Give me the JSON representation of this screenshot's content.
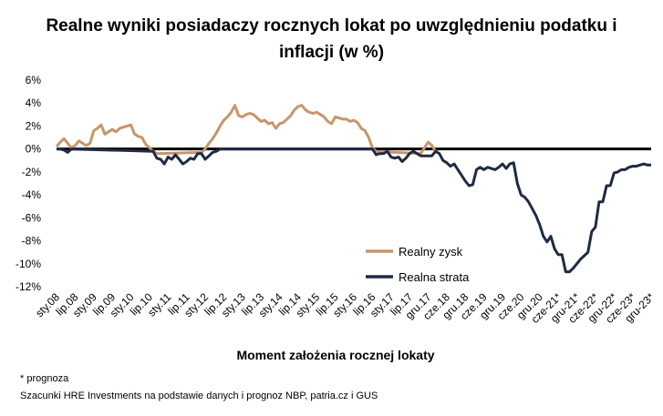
{
  "chart_data": {
    "type": "line",
    "title_lines": [
      "Realne wyniki posiadaczy rocznych lokat po uwzględnieniu podatku i",
      "inflacji (w %)"
    ],
    "xlabel": "Moment założenia rocznej lokaty",
    "ylabel": "",
    "ylim": [
      -12,
      6
    ],
    "y_ticks": [
      6,
      4,
      2,
      0,
      -2,
      -4,
      -6,
      -8,
      -10,
      -12
    ],
    "y_tick_labels": [
      "6%",
      "4%",
      "2%",
      "0%",
      "-2%",
      "-4%",
      "-6%",
      "-8%",
      "-10%",
      "-12%"
    ],
    "x_tick_labels": [
      "sty.08",
      "lip.08",
      "sty.09",
      "lip.09",
      "sty.10",
      "lip.10",
      "sty.11",
      "lip.11",
      "sty.12",
      "lip.12",
      "sty.13",
      "lip.13",
      "sty.14",
      "lip.14",
      "sty.15",
      "lip.15",
      "sty.16",
      "lip.16",
      "sty.17",
      "lip.17",
      "gru.17",
      "cze.18",
      "gru.18",
      "cze.19",
      "gru.19",
      "cze.20",
      "gru.20",
      "cze-21*",
      "gru-21*",
      "cze-22*",
      "gru-22*",
      "cze-23*",
      "gru-23*"
    ],
    "legend_position": "inside-lower-center",
    "colors": {
      "profit": "#c8956a",
      "loss": "#1f2a44",
      "zero_line": "#000000"
    },
    "series": [
      {
        "name": "Realny zysk",
        "color": "#c8956a",
        "points": [
          [
            0,
            0.2
          ],
          [
            0.2,
            0.6
          ],
          [
            0.4,
            0.9
          ],
          [
            0.6,
            0.5
          ],
          [
            0.8,
            0.1
          ],
          [
            1.0,
            0.3
          ],
          [
            1.2,
            0.7
          ],
          [
            1.4,
            0.5
          ],
          [
            1.6,
            0.3
          ],
          [
            1.8,
            0.5
          ],
          [
            2.0,
            1.6
          ],
          [
            2.2,
            1.8
          ],
          [
            2.4,
            2.1
          ],
          [
            2.6,
            1.3
          ],
          [
            2.8,
            1.5
          ],
          [
            3.0,
            1.7
          ],
          [
            3.2,
            1.5
          ],
          [
            3.4,
            1.8
          ],
          [
            3.6,
            1.9
          ],
          [
            3.8,
            2.0
          ],
          [
            4.0,
            2.1
          ],
          [
            4.2,
            1.3
          ],
          [
            4.4,
            1.1
          ],
          [
            4.6,
            1.0
          ],
          [
            4.8,
            0.4
          ],
          [
            5.0,
            0.1
          ],
          [
            5.2,
            -0.2
          ],
          [
            5.4,
            -0.4
          ],
          [
            7.8,
            -0.3
          ],
          [
            8.0,
            0.0
          ],
          [
            8.2,
            0.5
          ],
          [
            8.4,
            0.9
          ],
          [
            8.6,
            1.4
          ],
          [
            8.8,
            2.0
          ],
          [
            9.0,
            2.5
          ],
          [
            9.2,
            2.8
          ],
          [
            9.4,
            3.2
          ],
          [
            9.6,
            3.8
          ],
          [
            9.8,
            2.9
          ],
          [
            10.0,
            2.8
          ],
          [
            10.2,
            3.0
          ],
          [
            10.4,
            3.1
          ],
          [
            10.6,
            3.0
          ],
          [
            10.8,
            2.7
          ],
          [
            11.0,
            2.4
          ],
          [
            11.2,
            2.5
          ],
          [
            11.4,
            2.2
          ],
          [
            11.6,
            2.3
          ],
          [
            11.8,
            1.8
          ],
          [
            12.0,
            2.2
          ],
          [
            12.2,
            2.3
          ],
          [
            12.4,
            2.6
          ],
          [
            12.6,
            2.9
          ],
          [
            12.8,
            3.4
          ],
          [
            13.0,
            3.7
          ],
          [
            13.2,
            3.8
          ],
          [
            13.4,
            3.4
          ],
          [
            13.6,
            3.2
          ],
          [
            13.8,
            3.1
          ],
          [
            14.0,
            3.2
          ],
          [
            14.2,
            3.0
          ],
          [
            14.4,
            2.8
          ],
          [
            14.6,
            2.4
          ],
          [
            14.8,
            2.2
          ],
          [
            15.0,
            2.8
          ],
          [
            15.2,
            2.7
          ],
          [
            15.4,
            2.6
          ],
          [
            15.6,
            2.6
          ],
          [
            15.8,
            2.4
          ],
          [
            16.0,
            2.5
          ],
          [
            16.2,
            2.3
          ],
          [
            16.4,
            1.8
          ],
          [
            16.6,
            1.6
          ],
          [
            16.8,
            1.0
          ],
          [
            17.0,
            0.1
          ],
          [
            17.2,
            -0.2
          ],
          [
            19.6,
            -0.4
          ],
          [
            19.8,
            0.1
          ],
          [
            20.0,
            0.6
          ],
          [
            20.2,
            0.3
          ],
          [
            20.4,
            -0.2
          ]
        ]
      },
      {
        "name": "Realna strata",
        "color": "#1f2a44",
        "points": [
          [
            0,
            0.0
          ],
          [
            0.2,
            0.0
          ],
          [
            0.4,
            -0.1
          ],
          [
            0.6,
            -0.3
          ],
          [
            0.8,
            0.0
          ],
          [
            5.2,
            -0.2
          ],
          [
            5.4,
            -0.8
          ],
          [
            5.6,
            -0.9
          ],
          [
            5.8,
            -1.3
          ],
          [
            6.0,
            -0.7
          ],
          [
            6.2,
            -0.9
          ],
          [
            6.4,
            -0.5
          ],
          [
            6.6,
            -0.9
          ],
          [
            6.8,
            -1.3
          ],
          [
            7.0,
            -1.1
          ],
          [
            7.2,
            -0.8
          ],
          [
            7.4,
            -0.9
          ],
          [
            7.6,
            -0.4
          ],
          [
            7.8,
            -0.4
          ],
          [
            8.0,
            -0.9
          ],
          [
            8.2,
            -0.6
          ],
          [
            8.4,
            -0.3
          ],
          [
            8.6,
            -0.2
          ],
          [
            8.8,
            0.0
          ],
          [
            17.0,
            0.0
          ],
          [
            17.2,
            -0.5
          ],
          [
            17.4,
            -0.4
          ],
          [
            17.6,
            -0.4
          ],
          [
            17.8,
            -0.2
          ],
          [
            18.0,
            -0.7
          ],
          [
            18.2,
            -0.8
          ],
          [
            18.4,
            -0.7
          ],
          [
            18.6,
            -1.1
          ],
          [
            18.8,
            -0.8
          ],
          [
            19.0,
            -0.4
          ],
          [
            19.2,
            -0.2
          ],
          [
            19.4,
            -0.4
          ],
          [
            19.6,
            -0.6
          ],
          [
            19.8,
            -0.6
          ],
          [
            20.0,
            -0.6
          ],
          [
            20.2,
            -0.6
          ],
          [
            20.4,
            -0.2
          ],
          [
            20.6,
            -0.4
          ],
          [
            20.8,
            -1.0
          ],
          [
            21.0,
            -1.2
          ],
          [
            21.2,
            -1.5
          ],
          [
            21.4,
            -1.3
          ],
          [
            21.6,
            -1.8
          ],
          [
            21.8,
            -2.3
          ],
          [
            22.0,
            -2.8
          ],
          [
            22.2,
            -3.2
          ],
          [
            22.4,
            -3.1
          ],
          [
            22.6,
            -1.8
          ],
          [
            22.8,
            -1.6
          ],
          [
            23.0,
            -1.8
          ],
          [
            23.2,
            -1.6
          ],
          [
            23.4,
            -1.7
          ],
          [
            23.6,
            -1.8
          ],
          [
            23.8,
            -1.6
          ],
          [
            24.0,
            -1.3
          ],
          [
            24.2,
            -1.7
          ],
          [
            24.4,
            -1.3
          ],
          [
            24.6,
            -1.2
          ],
          [
            24.8,
            -3.0
          ],
          [
            25.0,
            -4.0
          ],
          [
            25.2,
            -4.2
          ],
          [
            25.4,
            -4.6
          ],
          [
            25.6,
            -5.2
          ],
          [
            25.8,
            -5.8
          ],
          [
            26.0,
            -6.6
          ],
          [
            26.2,
            -7.6
          ],
          [
            26.4,
            -8.1
          ],
          [
            26.6,
            -7.6
          ],
          [
            26.8,
            -8.7
          ],
          [
            27.0,
            -9.2
          ],
          [
            27.2,
            -9.2
          ],
          [
            27.4,
            -10.7
          ],
          [
            27.6,
            -10.7
          ],
          [
            27.8,
            -10.4
          ],
          [
            28.0,
            -10.0
          ],
          [
            28.2,
            -9.6
          ],
          [
            28.4,
            -9.3
          ],
          [
            28.6,
            -9.0
          ],
          [
            28.8,
            -7.2
          ],
          [
            29.0,
            -6.8
          ],
          [
            29.2,
            -4.6
          ],
          [
            29.4,
            -4.6
          ],
          [
            29.6,
            -3.2
          ],
          [
            29.8,
            -3.2
          ],
          [
            30.0,
            -2.1
          ],
          [
            30.2,
            -2.0
          ],
          [
            30.4,
            -1.8
          ],
          [
            30.6,
            -1.8
          ],
          [
            30.8,
            -1.6
          ],
          [
            31.0,
            -1.5
          ],
          [
            31.2,
            -1.5
          ],
          [
            31.4,
            -1.4
          ],
          [
            31.6,
            -1.3
          ],
          [
            31.8,
            -1.4
          ],
          [
            32.0,
            -1.4
          ]
        ]
      }
    ]
  },
  "footnotes": {
    "prognosis": "* prognoza",
    "source": "Szacunki HRE Investments na podstawie danych i prognoz NBP,  patria.cz  i GUS"
  }
}
